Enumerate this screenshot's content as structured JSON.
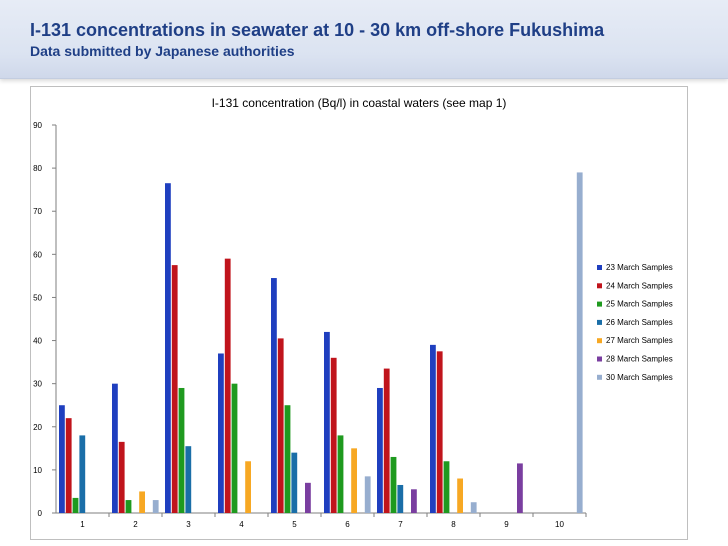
{
  "slide": {
    "title": "I-131 concentrations in seawater at 10 - 30 km off-shore Fukushima",
    "subtitle": "Data submitted by Japanese authorities"
  },
  "chart_data": {
    "type": "bar",
    "title": "I-131 concentration (Bq/l) in coastal waters (see map 1)",
    "xlabel": "",
    "ylabel": "",
    "ylim": [
      0,
      90
    ],
    "yticks": [
      0,
      10,
      20,
      30,
      40,
      50,
      60,
      70,
      80,
      90
    ],
    "categories": [
      "1",
      "2",
      "3",
      "4",
      "5",
      "6",
      "7",
      "8",
      "9",
      "10"
    ],
    "grid": false,
    "legend_position": "right",
    "series": [
      {
        "name": "23 March Samples",
        "color": "#1f3fbf",
        "values": [
          25,
          30,
          76.5,
          37,
          54.5,
          42,
          29,
          39,
          null,
          null
        ]
      },
      {
        "name": "24 March Samples",
        "color": "#c0141c",
        "values": [
          22,
          16.5,
          57.5,
          59,
          40.5,
          36,
          33.5,
          37.5,
          null,
          null
        ]
      },
      {
        "name": "25 March Samples",
        "color": "#1f9a1f",
        "values": [
          3.5,
          3,
          29,
          30,
          25,
          18,
          13,
          12,
          null,
          null
        ]
      },
      {
        "name": "26 March Samples",
        "color": "#1a6ea8",
        "values": [
          18,
          null,
          15.5,
          null,
          14,
          null,
          6.5,
          null,
          null,
          null
        ]
      },
      {
        "name": "27 March Samples",
        "color": "#f7a823",
        "values": [
          null,
          5,
          null,
          12,
          null,
          15,
          null,
          8,
          null,
          null
        ]
      },
      {
        "name": "28 March Samples",
        "color": "#7a3ea0",
        "values": [
          null,
          null,
          null,
          null,
          7,
          null,
          5.5,
          null,
          11.5,
          null
        ]
      },
      {
        "name": "30 March Samples",
        "color": "#97aecf",
        "values": [
          null,
          3,
          null,
          null,
          null,
          8.5,
          null,
          2.5,
          null,
          79
        ]
      }
    ]
  }
}
